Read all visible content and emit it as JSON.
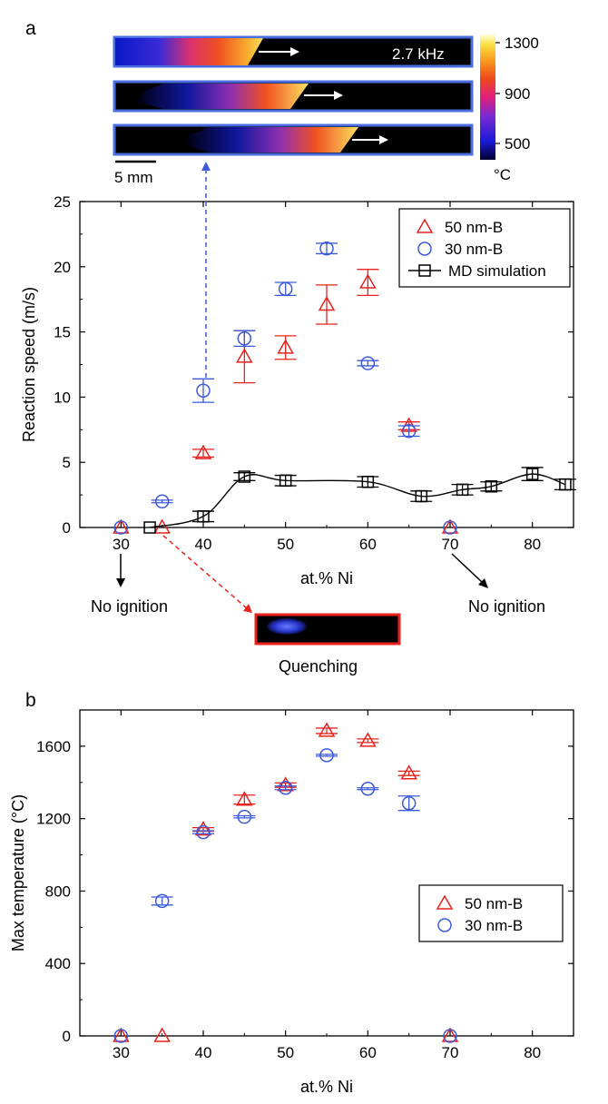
{
  "panels": {
    "a": "a",
    "b": "b"
  },
  "thermal": {
    "frame_rate": "2.7 kHz",
    "scale_bar": "5 mm",
    "colorbar_ticks": [
      "1300",
      "900",
      "500"
    ],
    "colorbar_unit": "°C"
  },
  "annotations": {
    "no_ignition_left": "No ignition",
    "no_ignition_right": "No ignition",
    "quenching": "Quenching"
  },
  "colors": {
    "nm50": "#e8231e",
    "nm30": "#3a5ad8",
    "md": "#000000",
    "frame_blue": "#4a6ee0",
    "frame_red": "#e8231e"
  },
  "chart_data": [
    {
      "type": "scatter",
      "id": "a",
      "title": "",
      "xlabel": "at.% Ni",
      "ylabel": "Reaction speed (m/s)",
      "xlim": [
        25,
        85
      ],
      "ylim": [
        0,
        25
      ],
      "xticks": [
        30,
        40,
        50,
        60,
        70,
        80
      ],
      "yticks": [
        0,
        5,
        10,
        15,
        20,
        25
      ],
      "legend": "top-right",
      "series": [
        {
          "name": "50 nm-B",
          "marker": "triangle",
          "points": [
            {
              "x": 30,
              "y": 0,
              "err": 0
            },
            {
              "x": 35,
              "y": 0,
              "err": 0
            },
            {
              "x": 40,
              "y": 5.7,
              "err": 0.3
            },
            {
              "x": 45,
              "y": 13.1,
              "err": 2.0
            },
            {
              "x": 50,
              "y": 13.8,
              "err": 0.9
            },
            {
              "x": 55,
              "y": 17.1,
              "err": 1.5
            },
            {
              "x": 60,
              "y": 18.8,
              "err": 1.0
            },
            {
              "x": 65,
              "y": 7.8,
              "err": 0.3
            },
            {
              "x": 70,
              "y": 0,
              "err": 0
            }
          ]
        },
        {
          "name": "30 nm-B",
          "marker": "circle",
          "points": [
            {
              "x": 30,
              "y": 0,
              "err": 0
            },
            {
              "x": 35,
              "y": 2.0,
              "err": 0.1
            },
            {
              "x": 40,
              "y": 10.5,
              "err": 0.9
            },
            {
              "x": 45,
              "y": 14.5,
              "err": 0.6
            },
            {
              "x": 50,
              "y": 18.3,
              "err": 0.5
            },
            {
              "x": 55,
              "y": 21.4,
              "err": 0.4
            },
            {
              "x": 60,
              "y": 12.6,
              "err": 0.2
            },
            {
              "x": 65,
              "y": 7.4,
              "err": 0.4
            },
            {
              "x": 70,
              "y": 0,
              "err": 0
            }
          ]
        },
        {
          "name": "MD simulation",
          "marker": "square",
          "line": true,
          "points": [
            {
              "x": 33.5,
              "y": 0,
              "err": 0
            },
            {
              "x": 40,
              "y": 0.85,
              "err": 0.4
            },
            {
              "x": 45,
              "y": 3.9,
              "err": 0.3
            },
            {
              "x": 50,
              "y": 3.6,
              "err": 0.4
            },
            {
              "x": 60,
              "y": 3.5,
              "err": 0.4
            },
            {
              "x": 66.5,
              "y": 2.4,
              "err": 0.4
            },
            {
              "x": 71.5,
              "y": 2.9,
              "err": 0.4
            },
            {
              "x": 75,
              "y": 3.15,
              "err": 0.35
            },
            {
              "x": 80,
              "y": 4.1,
              "err": 0.5
            },
            {
              "x": 84,
              "y": 3.3,
              "err": 0.4
            }
          ]
        }
      ]
    },
    {
      "type": "scatter",
      "id": "b",
      "title": "",
      "xlabel": "at.% Ni",
      "ylabel": "Max temperature (°C)",
      "xlim": [
        25,
        85
      ],
      "ylim": [
        0,
        1800
      ],
      "xticks": [
        30,
        40,
        50,
        60,
        70,
        80
      ],
      "yticks": [
        0,
        400,
        800,
        1200,
        1600
      ],
      "legend": "middle-right",
      "series": [
        {
          "name": "50 nm-B",
          "marker": "triangle",
          "points": [
            {
              "x": 30,
              "y": 0,
              "err": 0
            },
            {
              "x": 35,
              "y": 0,
              "err": 0
            },
            {
              "x": 40,
              "y": 1140,
              "err": 10
            },
            {
              "x": 45,
              "y": 1305,
              "err": 25
            },
            {
              "x": 50,
              "y": 1385,
              "err": 12
            },
            {
              "x": 55,
              "y": 1685,
              "err": 15
            },
            {
              "x": 60,
              "y": 1630,
              "err": 10
            },
            {
              "x": 65,
              "y": 1450,
              "err": 12
            },
            {
              "x": 70,
              "y": 0,
              "err": 0
            }
          ]
        },
        {
          "name": "30 nm-B",
          "marker": "circle",
          "points": [
            {
              "x": 30,
              "y": 0,
              "err": 0
            },
            {
              "x": 35,
              "y": 745,
              "err": 22
            },
            {
              "x": 40,
              "y": 1125,
              "err": 8
            },
            {
              "x": 45,
              "y": 1210,
              "err": 6
            },
            {
              "x": 50,
              "y": 1370,
              "err": 10
            },
            {
              "x": 55,
              "y": 1550,
              "err": 5
            },
            {
              "x": 60,
              "y": 1365,
              "err": 5
            },
            {
              "x": 65,
              "y": 1285,
              "err": 40
            },
            {
              "x": 70,
              "y": 0,
              "err": 0
            }
          ]
        }
      ]
    }
  ]
}
